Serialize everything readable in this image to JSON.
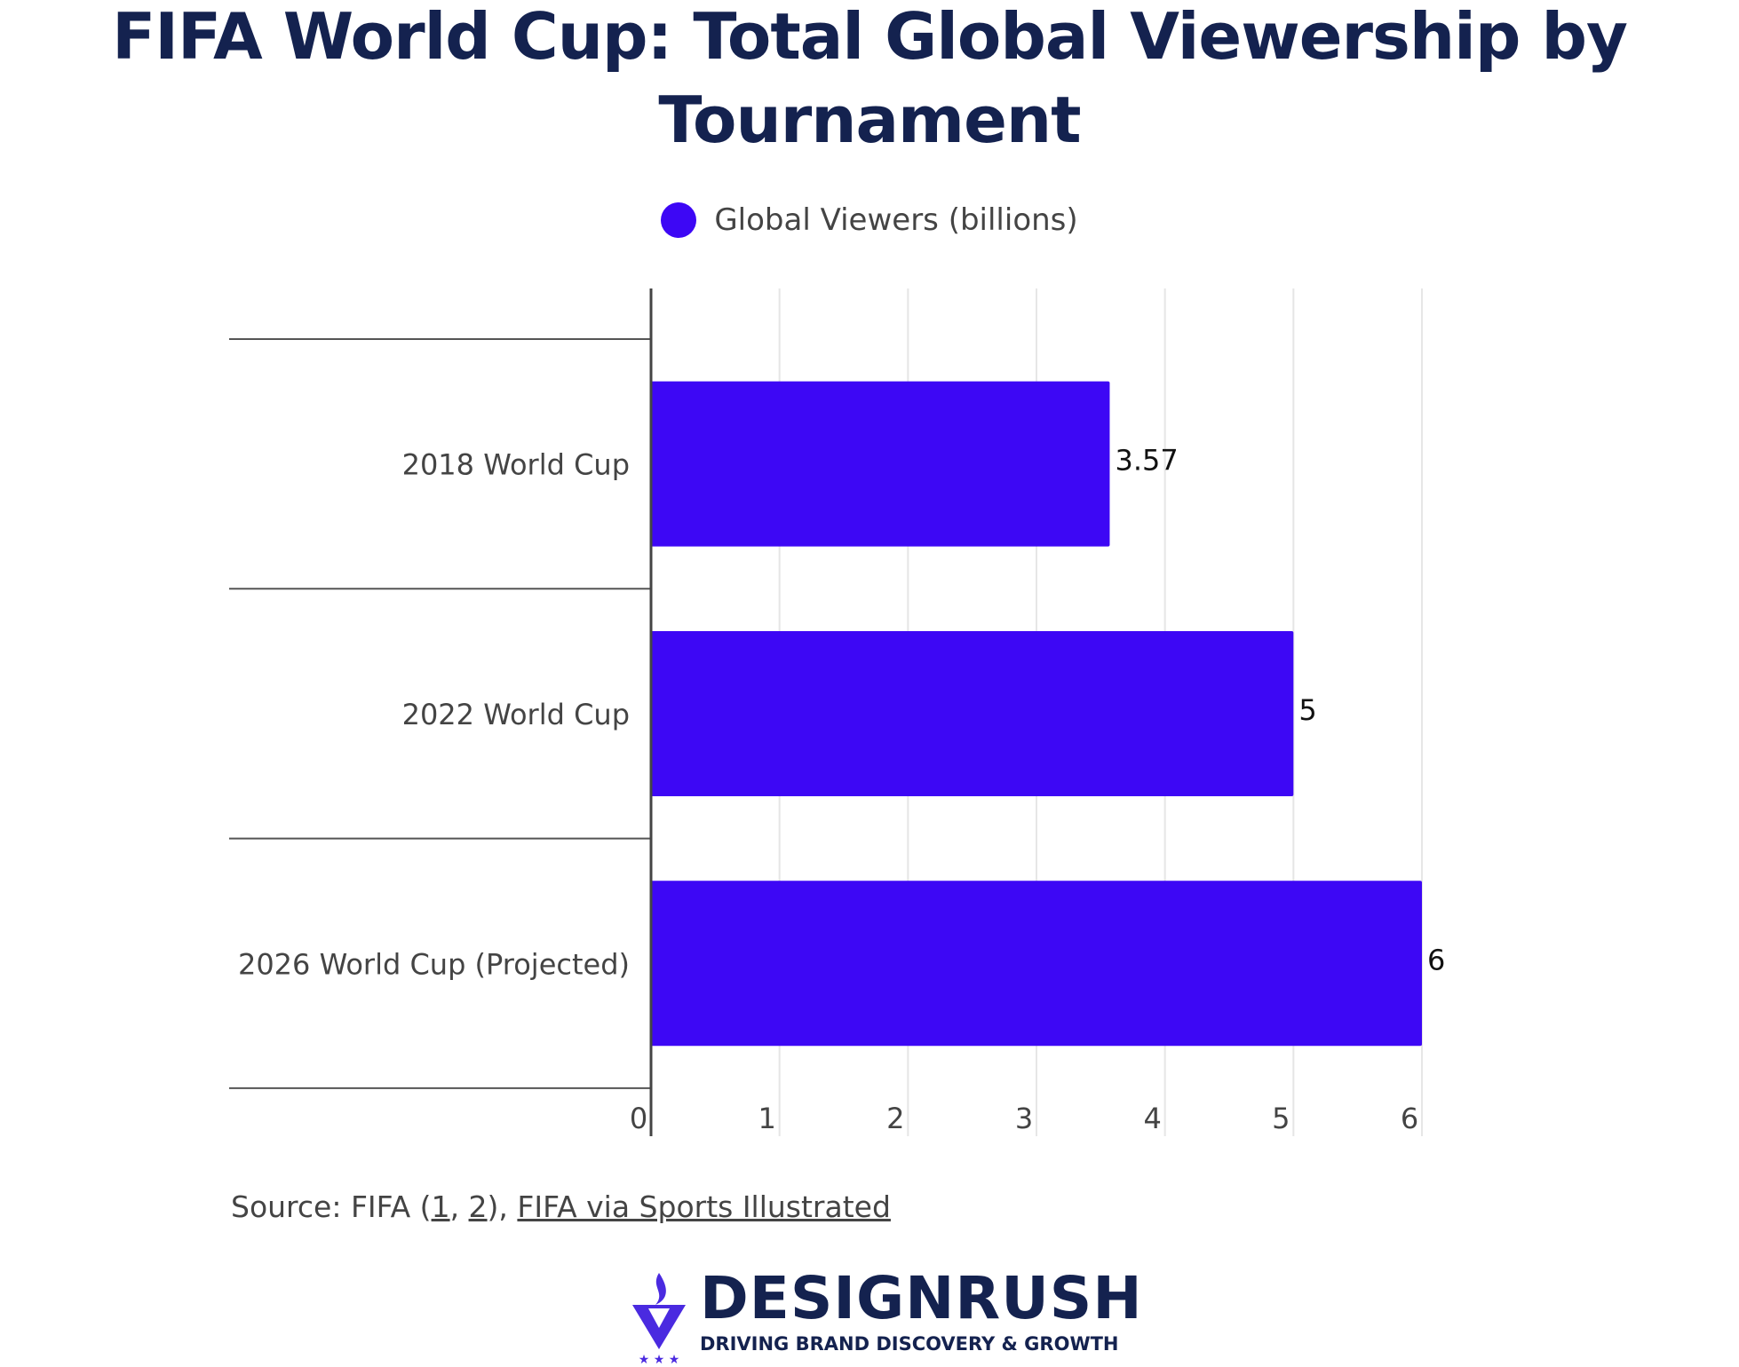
{
  "chart_data": {
    "type": "bar",
    "orientation": "horizontal",
    "title": "FIFA World Cup: Total Global Viewership by Tournament",
    "categories": [
      "2018 World Cup",
      "2022 World Cup",
      "2026 World Cup (Projected)"
    ],
    "series": [
      {
        "name": "Global Viewers (billions)",
        "values": [
          3.57,
          5,
          6
        ],
        "color": "#3d07f5"
      }
    ],
    "data_labels": [
      "3.57",
      "5",
      "6"
    ],
    "xlim": [
      0,
      6
    ],
    "xticks": [
      "0",
      "1",
      "2",
      "3",
      "4",
      "5",
      "6"
    ],
    "grid": true,
    "legend_position": "top"
  },
  "footer": {
    "source_prefix": "Source: FIFA (",
    "link1": "1",
    "sep": ", ",
    "link2": "2",
    "mid": "), ",
    "link3": "FIFA via Sports Illustrated"
  },
  "logo": {
    "name": "DESIGNRUSH",
    "tagline": "DRIVING BRAND DISCOVERY & GROWTH",
    "color": "#14224f",
    "accent": "#4a2ae0"
  }
}
